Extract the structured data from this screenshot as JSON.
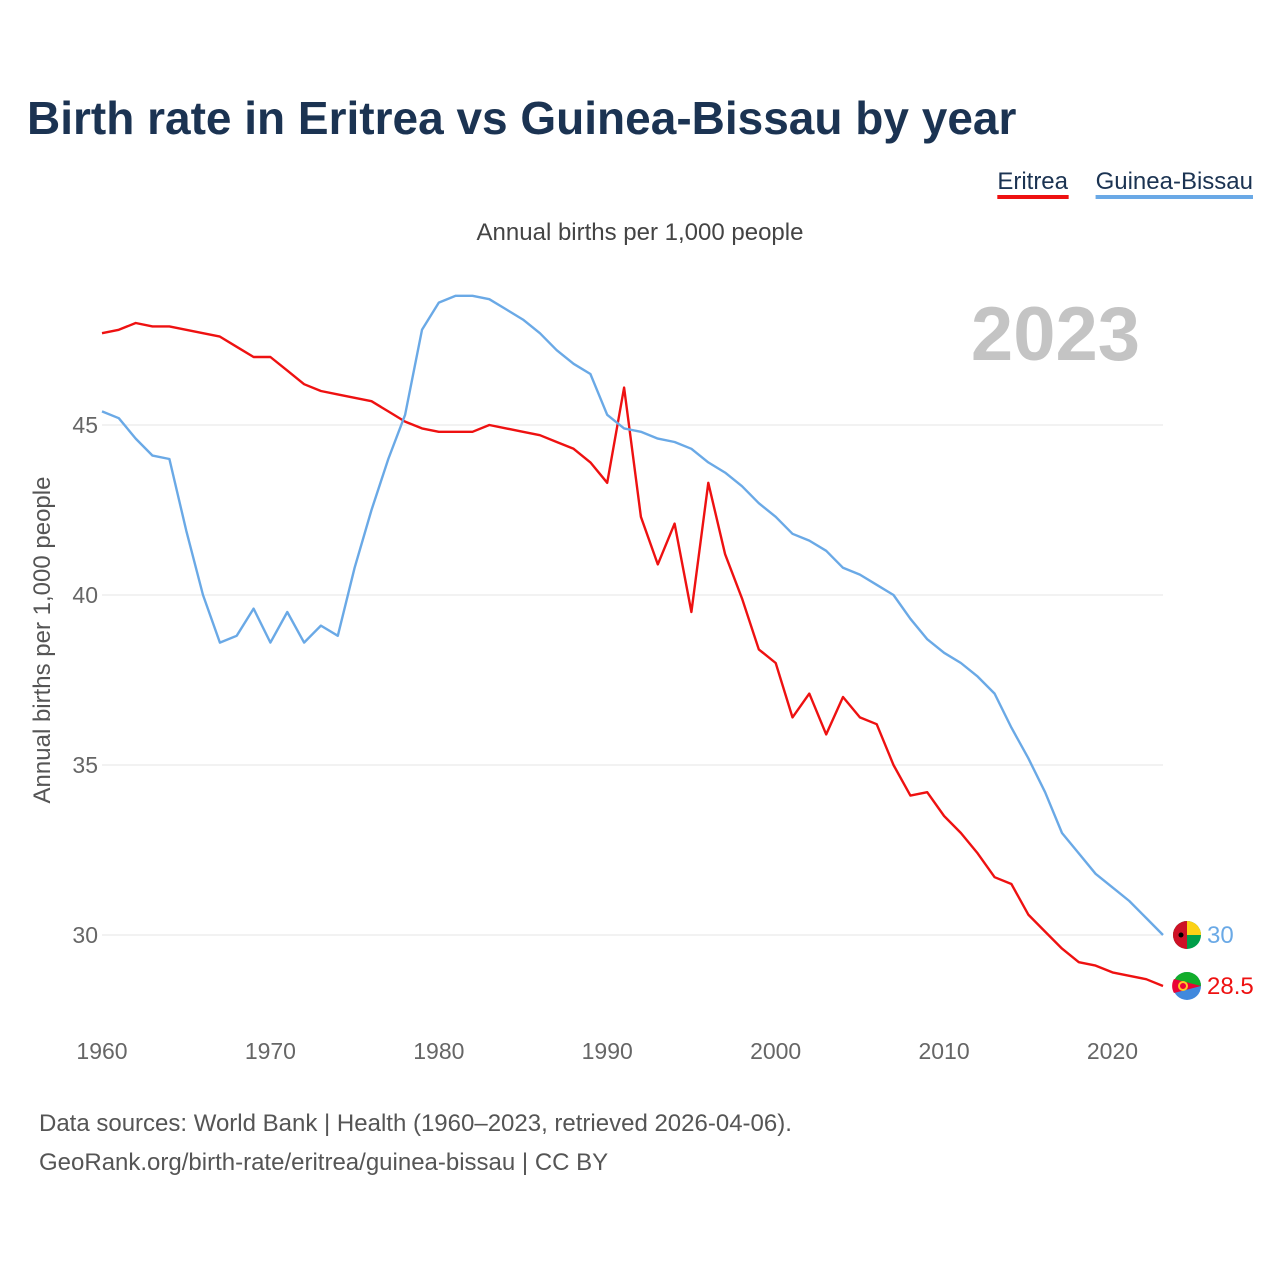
{
  "chart_data": {
    "type": "line",
    "title": "Birth rate in Eritrea vs Guinea-Bissau by year",
    "subtitle": "Annual births per 1,000 people",
    "ylabel": "Annual births per 1,000 people",
    "xlabel": "",
    "xlim": [
      1960,
      2023
    ],
    "ylim": [
      27.5,
      49.5
    ],
    "x_ticks": [
      1960,
      1970,
      1980,
      1990,
      2000,
      2010,
      2020
    ],
    "y_ticks": [
      30,
      35,
      40,
      45
    ],
    "grid": true,
    "legend_position": "top-right",
    "current_year_label": "2023",
    "x": [
      1960,
      1961,
      1962,
      1963,
      1964,
      1965,
      1966,
      1967,
      1968,
      1969,
      1970,
      1971,
      1972,
      1973,
      1974,
      1975,
      1976,
      1977,
      1978,
      1979,
      1980,
      1981,
      1982,
      1983,
      1984,
      1985,
      1986,
      1987,
      1988,
      1989,
      1990,
      1991,
      1992,
      1993,
      1994,
      1995,
      1996,
      1997,
      1998,
      1999,
      2000,
      2001,
      2002,
      2003,
      2004,
      2005,
      2006,
      2007,
      2008,
      2009,
      2010,
      2011,
      2012,
      2013,
      2014,
      2015,
      2016,
      2017,
      2018,
      2019,
      2020,
      2021,
      2022,
      2023
    ],
    "series": [
      {
        "name": "Eritrea",
        "color": "#ee1111",
        "end_label": "28.5",
        "flag_icon": "eritrea-flag-icon",
        "values": [
          47.7,
          47.8,
          48.0,
          47.9,
          47.9,
          47.8,
          47.7,
          47.6,
          47.3,
          47.0,
          47.0,
          46.6,
          46.2,
          46.0,
          45.9,
          45.8,
          45.7,
          45.4,
          45.1,
          44.9,
          44.8,
          44.8,
          44.8,
          45.0,
          44.9,
          44.8,
          44.7,
          44.5,
          44.3,
          43.9,
          43.3,
          46.1,
          42.3,
          40.9,
          42.1,
          39.5,
          43.3,
          41.2,
          39.9,
          38.4,
          38.0,
          36.4,
          37.1,
          35.9,
          37.0,
          36.4,
          36.2,
          35.0,
          34.1,
          34.2,
          33.5,
          33.0,
          32.4,
          31.7,
          31.5,
          30.6,
          30.1,
          29.6,
          29.2,
          29.1,
          28.9,
          28.8,
          28.7,
          28.5
        ]
      },
      {
        "name": "Guinea-Bissau",
        "color": "#6aa9e6",
        "end_label": "30",
        "flag_icon": "guinea-bissau-flag-icon",
        "values": [
          45.4,
          45.2,
          44.6,
          44.1,
          44.0,
          41.9,
          40.0,
          38.6,
          38.8,
          39.6,
          38.6,
          39.5,
          38.6,
          39.1,
          38.8,
          40.8,
          42.5,
          44.0,
          45.3,
          47.8,
          48.6,
          48.8,
          48.8,
          48.7,
          48.4,
          48.1,
          47.7,
          47.2,
          46.8,
          46.5,
          45.3,
          44.9,
          44.8,
          44.6,
          44.5,
          44.3,
          43.9,
          43.6,
          43.2,
          42.7,
          42.3,
          41.8,
          41.6,
          41.3,
          40.8,
          40.6,
          40.3,
          40.0,
          39.3,
          38.7,
          38.3,
          38.0,
          37.6,
          37.1,
          36.1,
          35.2,
          34.2,
          33.0,
          32.4,
          31.8,
          31.4,
          31.0,
          30.5,
          30.0
        ]
      }
    ]
  },
  "footer": {
    "source_line1": "Data sources: World Bank | Health (1960–2023, retrieved 2026-04-06).",
    "source_line2": "GeoRank.org/birth-rate/eritrea/guinea-bissau | CC BY"
  }
}
